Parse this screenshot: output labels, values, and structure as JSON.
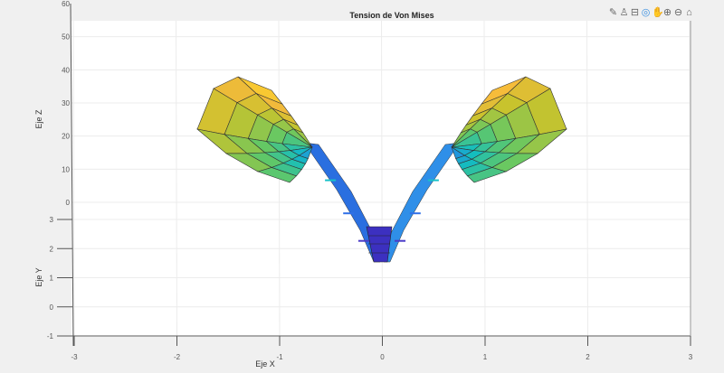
{
  "chart_data": {
    "type": "surface",
    "title": "Tension de Von Mises",
    "xlabel": "Eje X",
    "ylabel": "Eje Y",
    "zlabel": "Eje Z",
    "xlim": [
      -3,
      3
    ],
    "ylim": [
      -1,
      3
    ],
    "zlim": [
      0,
      60
    ],
    "x_ticks": [
      "-3",
      "-2",
      "-1",
      "0",
      "1",
      "2",
      "3"
    ],
    "y_ticks": [
      "3",
      "2",
      "1",
      "0",
      "-1"
    ],
    "z_ticks": [
      "60",
      "50",
      "40",
      "30",
      "20",
      "10",
      "0"
    ],
    "grid": true,
    "colormap": "parula"
  },
  "toolbar": [
    {
      "icon": "brush-icon",
      "glyph": "✎"
    },
    {
      "icon": "data-tip-icon",
      "glyph": "♙"
    },
    {
      "icon": "legend-icon",
      "glyph": "⊟"
    },
    {
      "icon": "rotate-3d-icon",
      "glyph": "◎"
    },
    {
      "icon": "pan-icon",
      "glyph": "✋"
    },
    {
      "icon": "zoom-in-icon",
      "glyph": "⊕"
    },
    {
      "icon": "zoom-out-icon",
      "glyph": "⊖"
    },
    {
      "icon": "home-icon",
      "glyph": "⌂"
    }
  ]
}
